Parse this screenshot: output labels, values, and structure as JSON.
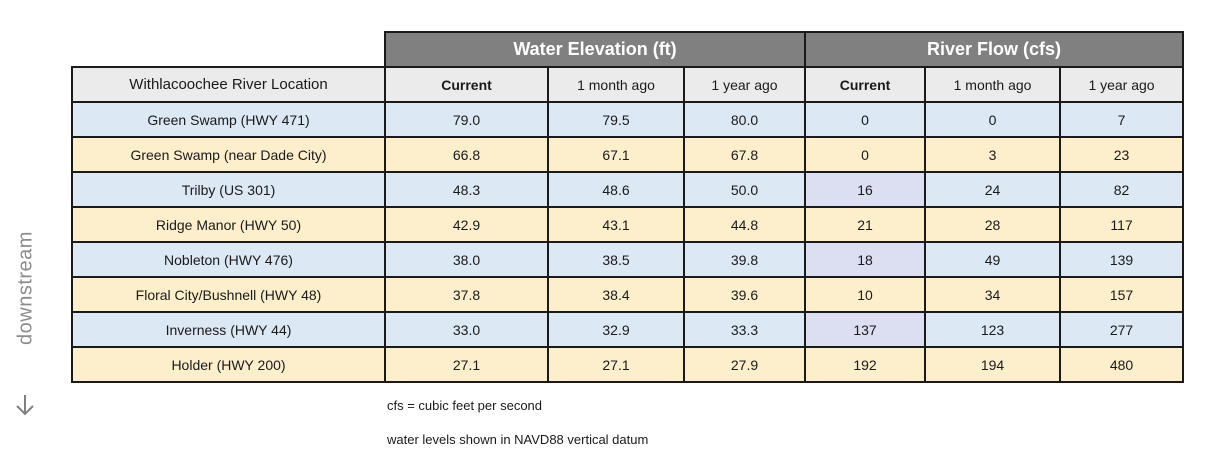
{
  "side": {
    "label": "downstream",
    "arrow_icon": "arrow-down-icon"
  },
  "table": {
    "group_headers": {
      "elevation": "Water Elevation (ft)",
      "flow": "River Flow (cfs)"
    },
    "columns": {
      "location": "Withlacoochee River Location",
      "elev_current": "Current",
      "elev_month": "1 month ago",
      "elev_year": "1 year ago",
      "flow_current": "Current",
      "flow_month": "1 month ago",
      "flow_year": "1 year ago"
    },
    "rows": [
      {
        "location": "Green Swamp (HWY 471)",
        "elev_current": "79.0",
        "elev_month": "79.5",
        "elev_year": "80.0",
        "flow_current": "0",
        "flow_month": "0",
        "flow_year": "7"
      },
      {
        "location": "Green Swamp (near Dade City)",
        "elev_current": "66.8",
        "elev_month": "67.1",
        "elev_year": "67.8",
        "flow_current": "0",
        "flow_month": "3",
        "flow_year": "23"
      },
      {
        "location": "Trilby (US 301)",
        "elev_current": "48.3",
        "elev_month": "48.6",
        "elev_year": "50.0",
        "flow_current": "16",
        "flow_month": "24",
        "flow_year": "82"
      },
      {
        "location": "Ridge Manor (HWY 50)",
        "elev_current": "42.9",
        "elev_month": "43.1",
        "elev_year": "44.8",
        "flow_current": "21",
        "flow_month": "28",
        "flow_year": "117"
      },
      {
        "location": "Nobleton (HWY 476)",
        "elev_current": "38.0",
        "elev_month": "38.5",
        "elev_year": "39.8",
        "flow_current": "18",
        "flow_month": "49",
        "flow_year": "139"
      },
      {
        "location": "Floral City/Bushnell (HWY 48)",
        "elev_current": "37.8",
        "elev_month": "38.4",
        "elev_year": "39.6",
        "flow_current": "10",
        "flow_month": "34",
        "flow_year": "157"
      },
      {
        "location": "Inverness (HWY 44)",
        "elev_current": "33.0",
        "elev_month": "32.9",
        "elev_year": "33.3",
        "flow_current": "137",
        "flow_month": "123",
        "flow_year": "277"
      },
      {
        "location": "Holder (HWY 200)",
        "elev_current": "27.1",
        "elev_month": "27.1",
        "elev_year": "27.9",
        "flow_current": "192",
        "flow_month": "194",
        "flow_year": "480"
      }
    ]
  },
  "notes": {
    "cfs": "cfs = cubic feet per second",
    "datum": "water levels shown in NAVD88 vertical datum"
  },
  "colors": {
    "group_header_bg": "#808080",
    "column_header_bg": "#ebebeb",
    "row_blue": "#dce8f4",
    "row_tan": "#fdefcc",
    "flow_highlight": "#dcdff2"
  }
}
